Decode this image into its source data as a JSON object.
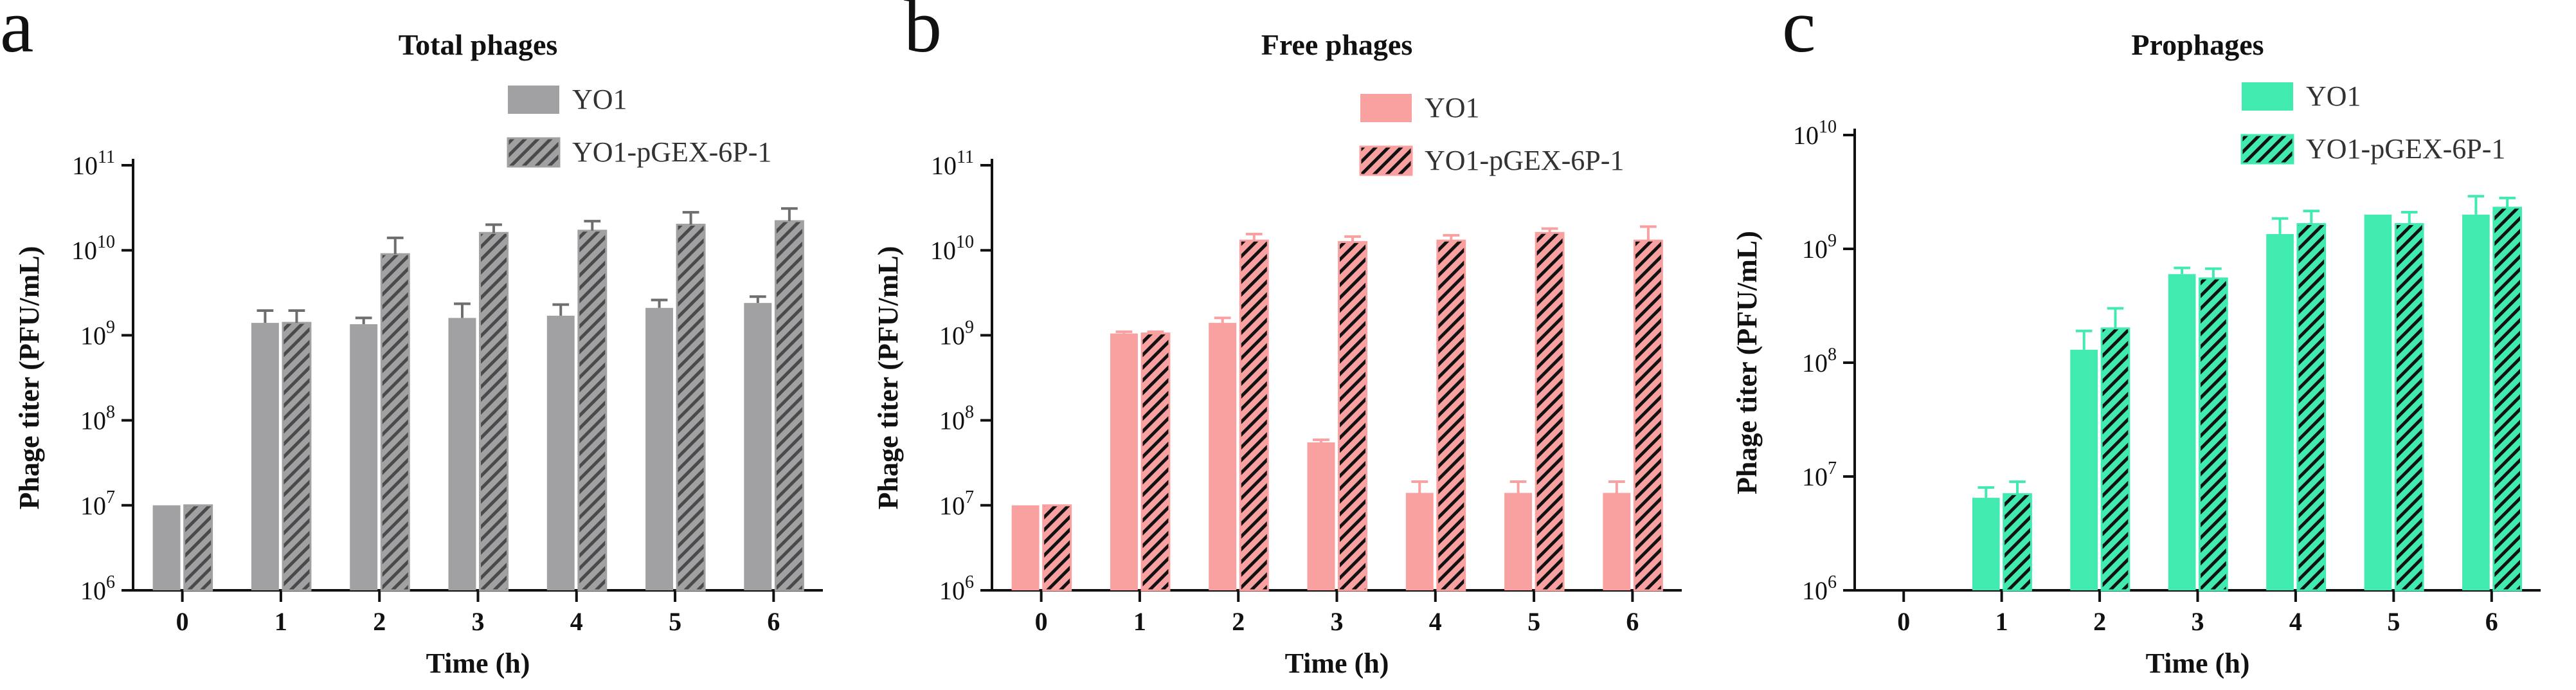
{
  "chart_data": [
    {
      "panel_label": "a",
      "type": "bar",
      "title": "Total phages",
      "xlabel": "Time (h)",
      "ylabel": "Phage titer (PFU/mL)",
      "y_scale": "log",
      "ylim": [
        1000000,
        100000000000
      ],
      "y_ticks": [
        {
          "value": 1000000,
          "base": "10",
          "exp": "6"
        },
        {
          "value": 10000000,
          "base": "10",
          "exp": "7"
        },
        {
          "value": 100000000,
          "base": "10",
          "exp": "8"
        },
        {
          "value": 1000000000,
          "base": "10",
          "exp": "9"
        },
        {
          "value": 10000000000,
          "base": "10",
          "exp": "10"
        },
        {
          "value": 100000000000,
          "base": "10",
          "exp": "11"
        }
      ],
      "categories": [
        "0",
        "1",
        "2",
        "3",
        "4",
        "5",
        "6"
      ],
      "legend_position": "top-right",
      "grid": false,
      "series": [
        {
          "name": "YO1",
          "color": "#a1a1a3",
          "pattern": "solid",
          "values": [
            10000000,
            1400000000,
            1350000000,
            1600000000,
            1700000000,
            2100000000,
            2400000000
          ],
          "errors": [
            0,
            550000000,
            250000000,
            750000000,
            600000000,
            500000000,
            450000000
          ]
        },
        {
          "name": "YO1-pGEX-6P-1",
          "color": "#a1a1a3",
          "pattern": "hatched",
          "values": [
            10000000,
            1400000000,
            9000000000,
            16000000000,
            17000000000,
            20000000000,
            22000000000
          ],
          "errors": [
            0,
            550000000,
            5000000000,
            4000000000,
            5000000000,
            8000000000,
            9000000000
          ]
        }
      ]
    },
    {
      "panel_label": "b",
      "type": "bar",
      "title": "Free phages",
      "xlabel": "Time (h)",
      "ylabel": "Phage titer (PFU/mL)",
      "y_scale": "log",
      "ylim": [
        1000000,
        100000000000
      ],
      "y_ticks": [
        {
          "value": 1000000,
          "base": "10",
          "exp": "6"
        },
        {
          "value": 10000000,
          "base": "10",
          "exp": "7"
        },
        {
          "value": 100000000,
          "base": "10",
          "exp": "8"
        },
        {
          "value": 1000000000,
          "base": "10",
          "exp": "9"
        },
        {
          "value": 10000000000,
          "base": "10",
          "exp": "10"
        },
        {
          "value": 100000000000,
          "base": "10",
          "exp": "11"
        }
      ],
      "categories": [
        "0",
        "1",
        "2",
        "3",
        "4",
        "5",
        "6"
      ],
      "legend_position": "top-right",
      "grid": false,
      "series": [
        {
          "name": "YO1",
          "color": "#f9a0a0",
          "pattern": "solid",
          "values": [
            10000000,
            1050000000,
            1400000000,
            55000000,
            14000000,
            14000000,
            14000000
          ],
          "errors": [
            0,
            50000000,
            200000000,
            4000000,
            5000000,
            5000000,
            5000000
          ]
        },
        {
          "name": "YO1-pGEX-6P-1",
          "color": "#f9a0a0",
          "pattern": "hatched",
          "values": [
            10000000,
            1050000000,
            13000000000,
            12500000000,
            13000000000,
            16000000000,
            13000000000
          ],
          "errors": [
            0,
            50000000,
            2500000000,
            2000000000,
            2000000000,
            2000000000,
            6000000000
          ]
        }
      ]
    },
    {
      "panel_label": "c",
      "type": "bar",
      "title": "Prophages",
      "xlabel": "Time (h)",
      "ylabel": "Phage titer (PFU/mL)",
      "y_scale": "log",
      "ylim": [
        1000000,
        10000000000
      ],
      "y_ticks": [
        {
          "value": 1000000,
          "base": "10",
          "exp": "6"
        },
        {
          "value": 10000000,
          "base": "10",
          "exp": "7"
        },
        {
          "value": 100000000,
          "base": "10",
          "exp": "8"
        },
        {
          "value": 1000000000,
          "base": "10",
          "exp": "9"
        },
        {
          "value": 10000000000,
          "base": "10",
          "exp": "10"
        }
      ],
      "categories": [
        "0",
        "1",
        "2",
        "3",
        "4",
        "5",
        "6"
      ],
      "legend_position": "top-right",
      "grid": false,
      "series": [
        {
          "name": "YO1",
          "color": "#41ebb0",
          "pattern": "solid",
          "values": [
            0,
            6500000,
            130000000,
            600000000,
            1350000000,
            2000000000,
            2000000000
          ],
          "errors": [
            0,
            1500000,
            60000000,
            80000000,
            500000000,
            0,
            900000000
          ]
        },
        {
          "name": "YO1-pGEX-6P-1",
          "color": "#41ebb0",
          "pattern": "hatched",
          "values": [
            0,
            7000000,
            200000000,
            550000000,
            1650000000,
            1650000000,
            2300000000
          ],
          "errors": [
            0,
            2000000,
            100000000,
            120000000,
            500000000,
            450000000,
            500000000
          ]
        }
      ]
    }
  ]
}
